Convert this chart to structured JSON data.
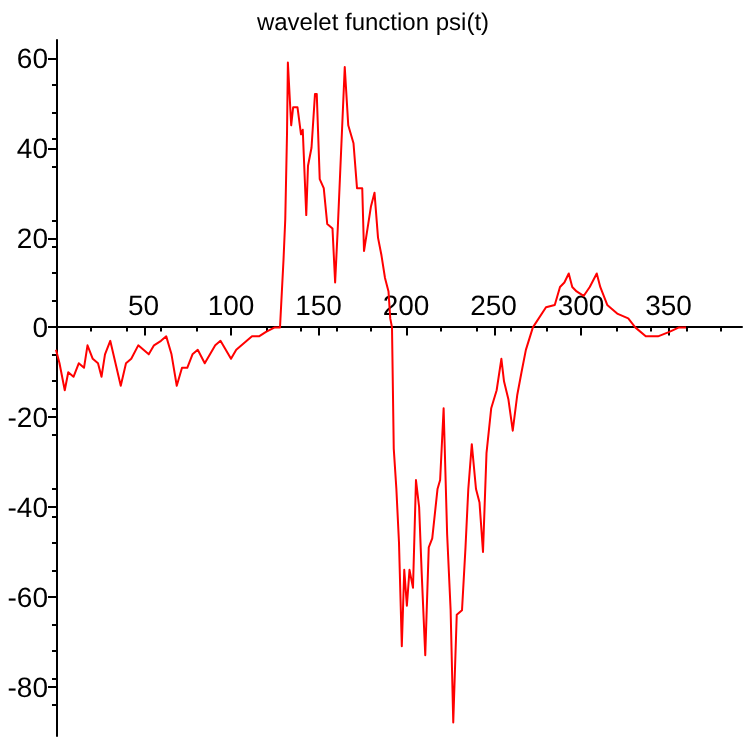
{
  "chart_data": {
    "type": "line",
    "title": "wavelet function psi(t)",
    "series": [
      {
        "color": "#ff0000",
        "x": [
          0,
          2,
          5,
          7,
          10,
          13,
          16,
          18,
          21,
          24,
          26,
          28,
          31,
          34,
          37,
          40,
          43,
          47,
          50,
          53,
          56,
          60,
          63,
          66,
          69,
          72,
          75,
          78,
          81,
          85,
          88,
          91,
          94,
          97,
          100,
          103,
          106,
          109,
          112,
          116,
          120,
          125,
          128,
          130,
          131,
          132,
          132.5,
          134.4,
          135.5,
          138,
          140,
          141,
          143,
          144,
          146,
          148,
          149,
          150.7,
          153,
          155,
          158,
          159.5,
          161,
          163,
          165,
          167,
          170,
          172,
          175,
          176,
          178,
          180,
          182,
          184,
          186,
          188,
          190,
          191,
          192,
          193,
          194.5,
          196,
          197.6,
          199,
          200.5,
          202,
          204,
          205.7,
          207.5,
          209,
          211,
          213,
          215,
          218,
          219.5,
          221.5,
          223.5,
          225.5,
          227,
          229,
          232,
          234,
          235.6,
          237.6,
          240,
          242,
          244,
          246,
          248.7,
          251.8,
          254.5,
          256,
          258.5,
          261,
          263.6,
          266,
          268.5,
          272.5,
          280,
          285,
          288,
          290.5,
          293,
          295,
          297.5,
          301.5,
          305,
          309,
          311,
          315,
          321,
          327,
          331,
          337,
          344,
          350.5,
          356,
          360
        ],
        "values": [
          -5,
          -8,
          -14,
          -10,
          -11,
          -8,
          -9,
          -4,
          -7,
          -8,
          -11,
          -6,
          -3,
          -8,
          -13,
          -8,
          -7,
          -4,
          -5,
          -6,
          -4,
          -3,
          -2,
          -6,
          -13,
          -9,
          -9,
          -6,
          -5,
          -8,
          -6,
          -4,
          -3,
          -5,
          -7,
          -5,
          -4,
          -3,
          -2,
          -2,
          -1,
          0,
          0,
          15,
          24,
          43,
          59,
          45,
          49,
          49,
          43,
          44,
          25,
          36,
          40,
          52,
          52,
          33,
          31,
          23,
          22,
          10,
          22,
          40,
          58,
          45,
          41,
          31,
          31,
          17,
          22,
          27,
          30,
          20,
          16,
          11,
          8,
          2,
          0,
          -27,
          -36,
          -48,
          -71,
          -54,
          -62,
          -54,
          -58,
          -34,
          -40,
          -55,
          -73,
          -49,
          -47,
          -36,
          -34,
          -18,
          -46,
          -63,
          -88,
          -64,
          -63,
          -49,
          -36,
          -26,
          -36,
          -39,
          -50,
          -28,
          -18,
          -14,
          -7,
          -12,
          -16,
          -23,
          -15,
          -10,
          -5,
          0,
          4.5,
          5,
          9,
          10,
          12,
          9,
          8,
          7,
          9,
          12,
          9,
          5,
          3,
          2,
          0,
          -2,
          -2,
          -1,
          0,
          0
        ]
      }
    ],
    "xlim": [
      0,
      392
    ],
    "ylim": [
      -91,
      64
    ],
    "xticks": [
      50,
      100,
      150,
      200,
      250,
      300,
      350
    ],
    "yticks": [
      -80,
      -60,
      -40,
      -20,
      0,
      20,
      40,
      60
    ],
    "marker": "none",
    "line_style": "solid"
  }
}
